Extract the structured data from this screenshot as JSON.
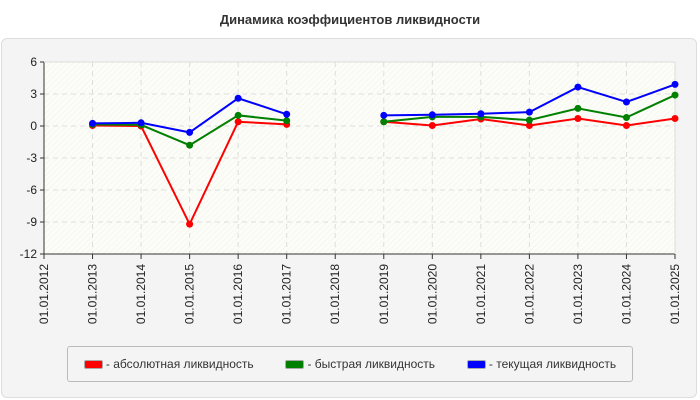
{
  "chart_data": {
    "type": "line",
    "title": "Динамика коэффициентов ликвидности",
    "categories": [
      "01.01.2012",
      "01.01.2013",
      "01.01.2014",
      "01.01.2015",
      "01.01.2016",
      "01.01.2017",
      "01.01.2018",
      "01.01.2019",
      "01.01.2020",
      "01.01.2021",
      "01.01.2022",
      "01.01.2023",
      "01.01.2024",
      "01.01.2025"
    ],
    "ylim": [
      -12,
      6
    ],
    "yticks": [
      "6",
      "3",
      "0",
      "-3",
      "-6",
      "-9",
      "-12"
    ],
    "grid": true,
    "legend_position": "bottom",
    "series": [
      {
        "name": "- абсолютная ликвидность",
        "color": "#ff0000",
        "values": [
          null,
          0.05,
          0.0,
          -9.2,
          0.4,
          0.15,
          null,
          0.4,
          0.05,
          0.65,
          0.05,
          0.7,
          0.05,
          0.7
        ]
      },
      {
        "name": "- быстрая ликвидность",
        "color": "#008000",
        "values": [
          null,
          0.15,
          0.1,
          -1.8,
          1.0,
          0.5,
          null,
          0.4,
          0.85,
          0.85,
          0.55,
          1.65,
          0.8,
          2.9
        ]
      },
      {
        "name": "- текущая ликвидность",
        "color": "#0000ff",
        "values": [
          null,
          0.25,
          0.3,
          -0.6,
          2.6,
          1.1,
          null,
          1.0,
          1.05,
          1.15,
          1.3,
          3.65,
          2.25,
          3.9
        ]
      }
    ]
  }
}
